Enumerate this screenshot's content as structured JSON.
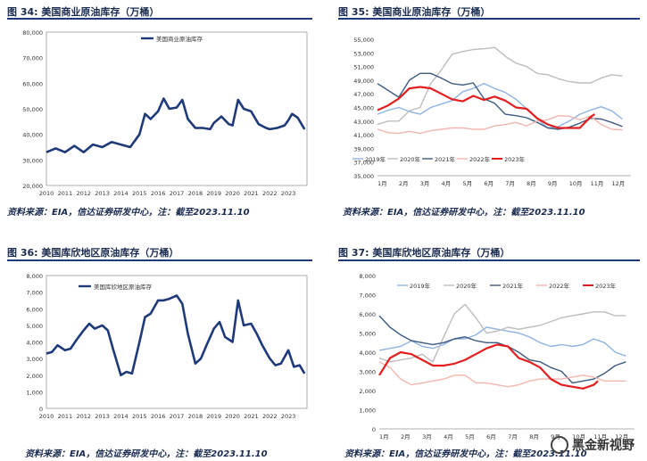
{
  "panels": [
    {
      "fig_label": "图 34:",
      "title": "美国商业原油库存（万桶）",
      "source": "资料来源：EIA，信达证券研发中心，注：截至2023.11.10"
    },
    {
      "fig_label": "图 35:",
      "title": "美国商业原油库存（万桶）",
      "source": "资料来源：EIA，信达证券研发中心，注：截至2023.11.10"
    },
    {
      "fig_label": "图 36:",
      "title": "美国库欣地区原油库存（万桶）",
      "source": "资料来源：EIA，信达证券研发中心，注：截至2023.11.10"
    },
    {
      "fig_label": "图 37:",
      "title": "美国库欣地区原油库存（万桶）",
      "source": "资料来源：EIA，信达证券研发中心，注：截至2023.11.10"
    }
  ],
  "watermark": {
    "text": "黑金新视野",
    "icon": "wechat-icon"
  },
  "colors": {
    "title": "#1a2b50",
    "navy": "#1f3a7a",
    "y2019": "#8fb4e3",
    "y2020": "#bdbdbd",
    "y2021": "#3d5a80",
    "y2022": "#f4b6b0",
    "y2023": "#e41e1e"
  },
  "chart_data": [
    {
      "type": "line",
      "title": "",
      "legend": "top-right",
      "x_ticks": [
        "2010",
        "2011",
        "2012",
        "2013",
        "2014",
        "2015",
        "2016",
        "2017",
        "2018",
        "2019",
        "2020",
        "2021",
        "2022",
        "2023"
      ],
      "ylim": [
        20000,
        80000
      ],
      "y_ticks": [
        "20,000",
        "30,000",
        "40,000",
        "50,000",
        "60,000",
        "70,000",
        "80,000"
      ],
      "grid": false,
      "series": [
        {
          "name": "美国商业原油库存",
          "x": [
            2010.0,
            2010.5,
            2011.0,
            2011.5,
            2012.0,
            2012.5,
            2013.0,
            2013.5,
            2014.0,
            2014.5,
            2015.0,
            2015.3,
            2015.6,
            2016.0,
            2016.3,
            2016.6,
            2017.0,
            2017.3,
            2017.6,
            2018.0,
            2018.4,
            2018.8,
            2019.0,
            2019.4,
            2019.8,
            2020.0,
            2020.3,
            2020.6,
            2021.0,
            2021.4,
            2021.8,
            2022.0,
            2022.4,
            2022.8,
            2023.0,
            2023.2,
            2023.5,
            2023.87
          ],
          "y": [
            33000,
            34500,
            33000,
            35500,
            33000,
            36000,
            35000,
            37000,
            36000,
            35000,
            40000,
            48000,
            46000,
            49000,
            54000,
            50000,
            50500,
            53500,
            46000,
            42500,
            42500,
            42000,
            44500,
            47000,
            44000,
            43500,
            53500,
            50000,
            49000,
            44000,
            42500,
            42000,
            42500,
            43500,
            45500,
            48000,
            46500,
            42000
          ]
        }
      ]
    },
    {
      "type": "line",
      "title": "",
      "legend": "bottom",
      "x_ticks": [
        "1月",
        "2月",
        "3月",
        "4月",
        "5月",
        "6月",
        "7月",
        "8月",
        "9月",
        "10月",
        "11月",
        "12月"
      ],
      "ylim": [
        35000,
        55000
      ],
      "y_ticks": [
        "35,000",
        "37,000",
        "39,000",
        "41,000",
        "43,000",
        "45,000",
        "47,000",
        "49,000",
        "51,000",
        "53,000",
        "55,000"
      ],
      "grid": false,
      "series": [
        {
          "name": "2019年",
          "x": [
            1,
            1.5,
            2,
            2.5,
            3,
            3.5,
            4,
            4.5,
            5,
            5.5,
            6,
            6.5,
            7,
            7.5,
            8,
            8.5,
            9,
            9.5,
            10,
            10.5,
            11,
            11.5,
            12,
            12.5
          ],
          "y": [
            44000,
            44600,
            45000,
            44400,
            44000,
            45000,
            45500,
            46000,
            47300,
            47800,
            48500,
            47800,
            47200,
            46200,
            44800,
            43300,
            42000,
            42200,
            43000,
            44000,
            44600,
            45100,
            44500,
            43300
          ]
        },
        {
          "name": "2020年",
          "x": [
            1,
            1.5,
            2,
            2.5,
            3,
            3.5,
            4,
            4.5,
            5,
            5.5,
            6,
            6.5,
            7,
            7.5,
            8,
            8.5,
            9,
            9.5,
            10,
            10.5,
            11,
            11.5,
            12,
            12.5
          ],
          "y": [
            42500,
            43000,
            43000,
            44500,
            45000,
            48500,
            50500,
            52800,
            53200,
            53500,
            53600,
            53800,
            52500,
            51500,
            51000,
            50000,
            49800,
            49200,
            48800,
            48600,
            48600,
            49300,
            49800,
            49600
          ]
        },
        {
          "name": "2021年",
          "x": [
            1,
            1.5,
            2,
            2.5,
            3,
            3.5,
            4,
            4.5,
            5,
            5.5,
            6,
            6.5,
            7,
            7.5,
            8,
            8.5,
            9,
            9.5,
            10,
            10.5,
            11,
            11.5,
            12,
            12.5
          ],
          "y": [
            48500,
            47500,
            46500,
            49000,
            50000,
            50000,
            49300,
            48500,
            48300,
            48600,
            46300,
            45600,
            44000,
            43800,
            43500,
            42800,
            42000,
            41800,
            42100,
            42700,
            43400,
            43300,
            42800,
            42200
          ]
        },
        {
          "name": "2022年",
          "x": [
            1,
            1.5,
            2,
            2.5,
            3,
            3.5,
            4,
            4.5,
            5,
            5.5,
            6,
            6.5,
            7,
            7.5,
            8,
            8.5,
            9,
            9.5,
            10,
            10.5,
            11,
            11.5,
            12,
            12.5
          ],
          "y": [
            41800,
            41300,
            41200,
            41500,
            41200,
            41600,
            41800,
            42000,
            42000,
            41800,
            41800,
            42300,
            42500,
            42800,
            42300,
            43000,
            43200,
            43800,
            43700,
            43200,
            43700,
            42500,
            41800,
            41700
          ]
        },
        {
          "name": "2023年",
          "x": [
            1,
            1.5,
            2,
            2.5,
            3,
            3.5,
            4,
            4.5,
            5,
            5.5,
            6,
            6.5,
            7,
            7.5,
            8,
            8.5,
            9,
            9.5,
            10,
            10.5,
            11,
            11.2
          ],
          "y": [
            44600,
            45300,
            46300,
            47800,
            48000,
            47800,
            47000,
            46200,
            45900,
            46700,
            46100,
            46600,
            46000,
            45000,
            44800,
            43400,
            42500,
            42000,
            42000,
            42000,
            43600,
            44000
          ]
        }
      ]
    },
    {
      "type": "line",
      "title": "",
      "legend": "top-right",
      "x_ticks": [
        "2010",
        "2011",
        "2012",
        "2013",
        "2014",
        "2015",
        "2016",
        "2017",
        "2018",
        "2019",
        "2020",
        "2021",
        "2022",
        "2023"
      ],
      "ylim": [
        0,
        8000
      ],
      "y_ticks": [
        "0",
        "1,000",
        "2,000",
        "3,000",
        "4,000",
        "5,000",
        "6,000",
        "7,000",
        "8,000"
      ],
      "grid": false,
      "series": [
        {
          "name": "美国库欣地区原油库存",
          "x": [
            2010.0,
            2010.3,
            2010.6,
            2011.0,
            2011.3,
            2011.6,
            2012.0,
            2012.3,
            2012.6,
            2013.0,
            2013.3,
            2013.6,
            2014.0,
            2014.3,
            2014.6,
            2015.0,
            2015.3,
            2015.6,
            2016.0,
            2016.3,
            2016.6,
            2017.0,
            2017.3,
            2017.6,
            2018.0,
            2018.3,
            2018.6,
            2019.0,
            2019.3,
            2019.6,
            2020.0,
            2020.3,
            2020.6,
            2021.0,
            2021.3,
            2021.6,
            2022.0,
            2022.3,
            2022.6,
            2023.0,
            2023.3,
            2023.6,
            2023.87
          ],
          "y": [
            3300,
            3400,
            3800,
            3500,
            3600,
            4100,
            4700,
            5100,
            4800,
            5000,
            4700,
            3500,
            2000,
            2200,
            2100,
            4000,
            5500,
            5700,
            6500,
            6500,
            6600,
            6800,
            6300,
            4500,
            2700,
            3000,
            3800,
            4800,
            5200,
            4300,
            4000,
            6500,
            5000,
            5100,
            4500,
            3800,
            3000,
            2600,
            2700,
            3500,
            2500,
            2600,
            2100
          ]
        }
      ]
    },
    {
      "type": "line",
      "title": "",
      "legend": "top",
      "x_ticks": [
        "1月",
        "2月",
        "3月",
        "4月",
        "5月",
        "6月",
        "7月",
        "8月",
        "9月",
        "10月",
        "11月",
        "12月"
      ],
      "ylim": [
        0,
        8000
      ],
      "y_ticks": [
        "0",
        "1,000",
        "2,000",
        "3,000",
        "4,000",
        "5,000",
        "6,000",
        "7,000",
        "8,000"
      ],
      "grid": false,
      "series": [
        {
          "name": "2019年",
          "x": [
            1,
            1.5,
            2,
            2.5,
            3,
            3.5,
            4,
            4.5,
            5,
            5.5,
            6,
            6.5,
            7,
            7.5,
            8,
            8.5,
            9,
            9.5,
            10,
            10.5,
            11,
            11.5,
            12,
            12.5
          ],
          "y": [
            4100,
            4200,
            4300,
            4600,
            4300,
            4200,
            4400,
            4700,
            4700,
            4900,
            5300,
            5200,
            5100,
            5000,
            4800,
            4500,
            4300,
            4400,
            4300,
            4400,
            4700,
            4500,
            4000,
            3800
          ]
        },
        {
          "name": "2020年",
          "x": [
            1,
            1.5,
            2,
            2.5,
            3,
            3.5,
            4,
            4.5,
            5,
            5.5,
            6,
            6.5,
            7,
            7.5,
            8,
            8.5,
            9,
            9.5,
            10,
            10.5,
            11,
            11.5,
            12,
            12.5
          ],
          "y": [
            3700,
            3500,
            3600,
            3700,
            3900,
            3500,
            4800,
            6000,
            6500,
            5800,
            5000,
            5100,
            5300,
            5200,
            5300,
            5400,
            5600,
            5800,
            5900,
            6000,
            6100,
            6100,
            5900,
            5900
          ]
        },
        {
          "name": "2021年",
          "x": [
            1,
            1.5,
            2,
            2.5,
            3,
            3.5,
            4,
            4.5,
            5,
            5.5,
            6,
            6.5,
            7,
            7.5,
            8,
            8.5,
            9,
            9.5,
            10,
            10.5,
            11,
            11.5,
            12,
            12.5
          ],
          "y": [
            5900,
            5300,
            4900,
            4600,
            4500,
            4400,
            4500,
            4700,
            4800,
            4600,
            4500,
            4500,
            4300,
            4000,
            3600,
            3500,
            3200,
            3000,
            2400,
            2500,
            2600,
            2900,
            3300,
            3500
          ]
        },
        {
          "name": "2022年",
          "x": [
            1,
            1.5,
            2,
            2.5,
            3,
            3.5,
            4,
            4.5,
            5,
            5.5,
            6,
            6.5,
            7,
            7.5,
            8,
            8.5,
            9,
            9.5,
            10,
            10.5,
            11,
            11.5,
            12,
            12.5
          ],
          "y": [
            3500,
            3200,
            2600,
            2300,
            2400,
            2500,
            2600,
            2800,
            2800,
            2400,
            2400,
            2300,
            2200,
            2300,
            2500,
            2600,
            2600,
            2600,
            2700,
            2800,
            2700,
            2500,
            2500,
            2500
          ]
        },
        {
          "name": "2023年",
          "x": [
            1,
            1.5,
            2,
            2.5,
            3,
            3.5,
            4,
            4.5,
            5,
            5.5,
            6,
            6.5,
            7,
            7.5,
            8,
            8.5,
            9,
            9.5,
            10,
            10.5,
            11,
            11.2
          ],
          "y": [
            2800,
            3700,
            4000,
            3900,
            3600,
            3300,
            3300,
            3400,
            3600,
            3900,
            4200,
            4400,
            4300,
            3700,
            3500,
            3200,
            2600,
            2300,
            2200,
            2100,
            2300,
            2500
          ]
        }
      ]
    }
  ]
}
